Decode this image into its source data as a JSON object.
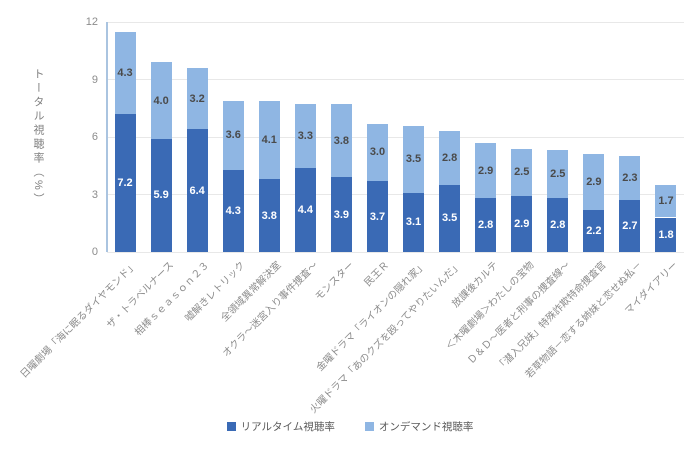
{
  "colors": {
    "realtime_bar": "#3a6ab5",
    "ondemand_bar": "#8fb6e3",
    "gridline": "#e8e8e8",
    "y_axis_line": "#aac4e0",
    "tick_text": "#8c8c8c",
    "value_text_dark_segment": "#ffffff",
    "value_text_light_segment": "#4a4a4a",
    "legend_text": "#595959"
  },
  "y_axis": {
    "title": "トータル視聴率（%）",
    "tick_labels": [
      "0",
      "3",
      "6",
      "9",
      "12"
    ]
  },
  "legend": {
    "items": [
      {
        "label": "リアルタイム視聴率",
        "color": "#3a6ab5"
      },
      {
        "label": "オンデマンド視聴率",
        "color": "#8fb6e3"
      }
    ]
  },
  "chart_data": {
    "type": "bar",
    "stacked": true,
    "title": "",
    "xlabel": "",
    "ylabel": "トータル視聴率（%）",
    "ylim": [
      0,
      12
    ],
    "yticks": [
      0,
      3,
      6,
      9,
      12
    ],
    "grid": true,
    "legend_position": "bottom",
    "categories": [
      "日曜劇場「海に眠るダイヤモンド」",
      "ザ・トラベルナース",
      "相棒ｓｅａｓｏｎ２３",
      "嘘解きレトリック",
      "全領域異常解決室",
      "オクラ～迷宮入り事件捜査～",
      "モンスター",
      "民王Ｒ",
      "金曜ドラマ「ライオンの隠れ家」",
      "火曜ドラマ「あのクズを殴ってやりたいんだ」",
      "放課後カルテ",
      "＜木曜劇場＞わたしの宝物",
      "Ｄ＆Ｄ～医者と刑事の捜査線～",
      "「潜入兄妹」特殊詐欺特命捜査官",
      "若草物語－恋する姉妹と恋せぬ私－",
      "マイダイアリー"
    ],
    "series": [
      {
        "name": "リアルタイム視聴率",
        "color": "#3a6ab5",
        "values": [
          7.2,
          5.9,
          6.4,
          4.3,
          3.8,
          4.4,
          3.9,
          3.7,
          3.1,
          3.5,
          2.8,
          2.9,
          2.8,
          2.2,
          2.7,
          1.8
        ]
      },
      {
        "name": "オンデマンド視聴率",
        "color": "#8fb6e3",
        "values": [
          4.3,
          4.0,
          3.2,
          3.6,
          4.1,
          3.3,
          3.8,
          3.0,
          3.5,
          2.8,
          2.9,
          2.5,
          2.5,
          2.9,
          2.3,
          1.7
        ]
      }
    ]
  }
}
